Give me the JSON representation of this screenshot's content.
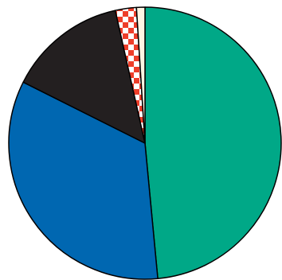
{
  "chart_data": {
    "type": "pie",
    "start_angle_deg": 0,
    "direction": "clockwise",
    "slices": [
      {
        "value": 48.5,
        "color": "#00a887",
        "pattern": "solid"
      },
      {
        "value": 33.9,
        "color": "#0067b1",
        "pattern": "solid"
      },
      {
        "value": 14.1,
        "color": "#231f20",
        "pattern": "solid"
      },
      {
        "value": 2.5,
        "color": "#ee3e2a",
        "pattern": "checkerboard",
        "pattern_alt_color": "#ffffff"
      },
      {
        "value": 1.0,
        "color": "#fdf6e3",
        "pattern": "solid"
      }
    ],
    "stroke_color": "#000000"
  }
}
